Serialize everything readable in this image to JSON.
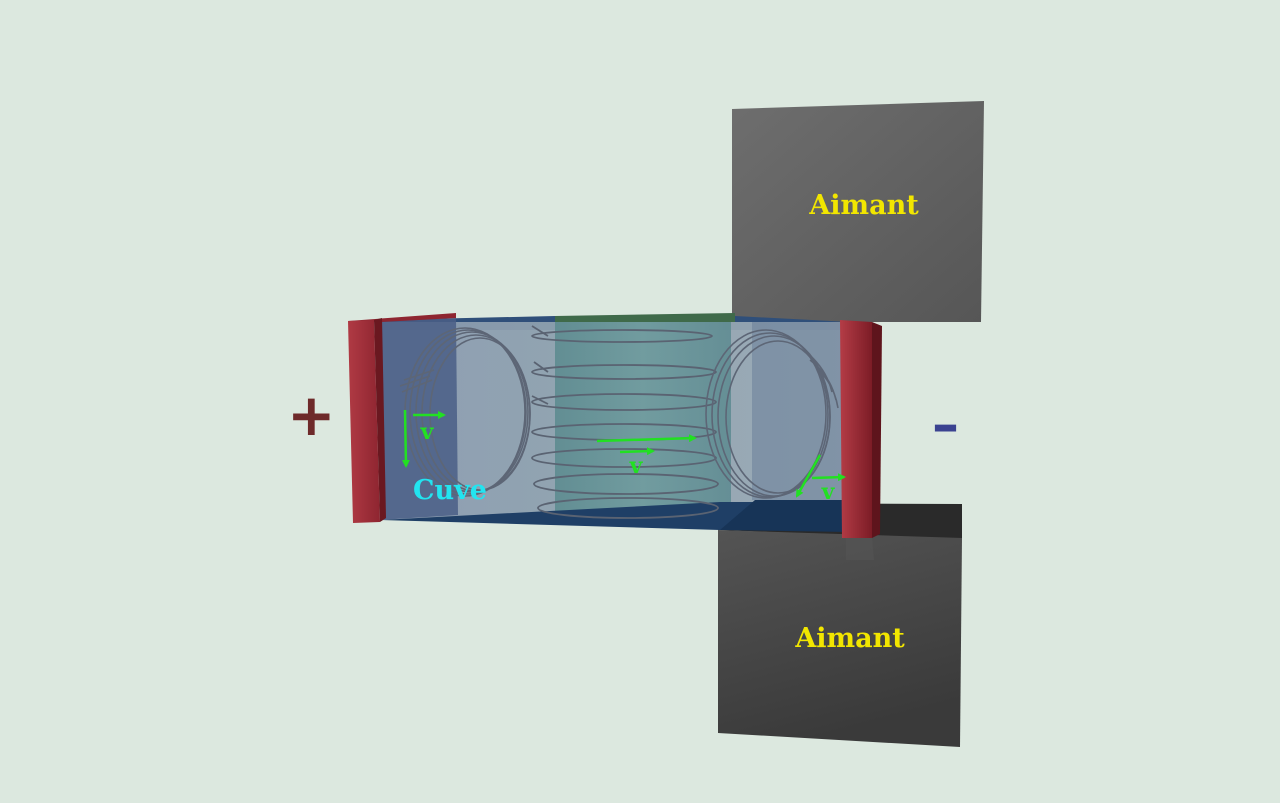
{
  "labels": {
    "magnet_top": "Aimant",
    "magnet_bottom": "Aimant",
    "tank": "Cuve",
    "velocity_left": "v",
    "velocity_center": "v",
    "velocity_right": "v",
    "plus_sign": "+",
    "minus_sign": "–"
  },
  "colors": {
    "background": "#dce8df",
    "magnet_label": "#f2e600",
    "tank_label": "#22e4f0",
    "velocity_arrow": "#22e022",
    "electrode": "#a22f38",
    "plus_sign": "#6e2a2a",
    "minus_sign": "#3a4290"
  }
}
